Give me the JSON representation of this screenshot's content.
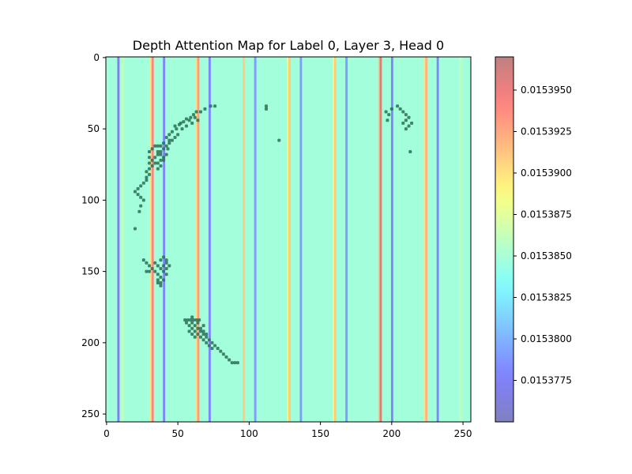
{
  "chart_data": {
    "type": "heatmap",
    "title": "Depth Attention Map for Label 0, Layer 3, Head 0",
    "xlabel": "",
    "ylabel": "",
    "xlim": [
      0,
      255
    ],
    "ylim": [
      255,
      0
    ],
    "x_ticks": [
      0,
      50,
      100,
      150,
      200,
      250
    ],
    "y_ticks": [
      0,
      50,
      100,
      150,
      200,
      250
    ],
    "grid": false,
    "colormap": "jet",
    "colormap_alpha": 0.5,
    "colorbar": {
      "min": 0.015375,
      "max": 0.015397,
      "ticks": [
        0.0153775,
        0.01538,
        0.0153825,
        0.015385,
        0.0153875,
        0.01539,
        0.0153925,
        0.015395
      ],
      "tick_labels": [
        "0.0153775",
        "0.0153800",
        "0.0153825",
        "0.0153850",
        "0.0153875",
        "0.0153900",
        "0.0153925",
        "0.0153950"
      ]
    },
    "background_value": 0.0153848,
    "column_bands": [
      {
        "x": 8,
        "value": 0.015377
      },
      {
        "x": 11,
        "value": 0.015386
      },
      {
        "x": 31,
        "value": 0.01539
      },
      {
        "x": 32,
        "value": 0.015394
      },
      {
        "x": 40,
        "value": 0.015378
      },
      {
        "x": 63,
        "value": 0.01539
      },
      {
        "x": 64,
        "value": 0.015393
      },
      {
        "x": 72,
        "value": 0.015378
      },
      {
        "x": 96,
        "value": 0.015391
      },
      {
        "x": 104,
        "value": 0.015379
      },
      {
        "x": 127,
        "value": 0.015389
      },
      {
        "x": 128,
        "value": 0.015391
      },
      {
        "x": 136,
        "value": 0.015379
      },
      {
        "x": 159,
        "value": 0.015389
      },
      {
        "x": 160,
        "value": 0.015391
      },
      {
        "x": 168,
        "value": 0.015379
      },
      {
        "x": 191,
        "value": 0.015391
      },
      {
        "x": 192,
        "value": 0.015396
      },
      {
        "x": 200,
        "value": 0.015378
      },
      {
        "x": 223,
        "value": 0.01539
      },
      {
        "x": 224,
        "value": 0.015392
      },
      {
        "x": 232,
        "value": 0.015378
      },
      {
        "x": 248,
        "value": 0.015386
      }
    ],
    "overlay_points": [
      [
        73,
        34
      ],
      [
        76,
        34
      ],
      [
        69,
        36
      ],
      [
        66,
        38
      ],
      [
        63,
        38
      ],
      [
        61,
        40
      ],
      [
        59,
        42
      ],
      [
        56,
        43
      ],
      [
        54,
        45
      ],
      [
        51,
        47
      ],
      [
        49,
        50
      ],
      [
        56,
        48
      ],
      [
        53,
        50
      ],
      [
        60,
        46
      ],
      [
        64,
        44
      ],
      [
        62,
        42
      ],
      [
        58,
        44
      ],
      [
        52,
        46
      ],
      [
        48,
        48
      ],
      [
        46,
        52
      ],
      [
        44,
        54
      ],
      [
        42,
        56
      ],
      [
        50,
        54
      ],
      [
        48,
        56
      ],
      [
        46,
        58
      ],
      [
        44,
        60
      ],
      [
        42,
        62
      ],
      [
        40,
        64
      ],
      [
        38,
        66
      ],
      [
        36,
        68
      ],
      [
        34,
        70
      ],
      [
        32,
        72
      ],
      [
        40,
        60
      ],
      [
        38,
        62
      ],
      [
        36,
        62
      ],
      [
        34,
        62
      ],
      [
        32,
        64
      ],
      [
        30,
        66
      ],
      [
        30,
        70
      ],
      [
        30,
        74
      ],
      [
        30,
        78
      ],
      [
        28,
        80
      ],
      [
        28,
        84
      ],
      [
        36,
        66
      ],
      [
        38,
        68
      ],
      [
        40,
        70
      ],
      [
        38,
        72
      ],
      [
        36,
        74
      ],
      [
        34,
        74
      ],
      [
        32,
        76
      ],
      [
        30,
        82
      ],
      [
        28,
        86
      ],
      [
        26,
        88
      ],
      [
        24,
        90
      ],
      [
        22,
        92
      ],
      [
        20,
        94
      ],
      [
        22,
        96
      ],
      [
        24,
        98
      ],
      [
        26,
        100
      ],
      [
        24,
        104
      ],
      [
        23,
        108
      ],
      [
        20,
        120
      ],
      [
        44,
        58
      ],
      [
        43,
        64
      ],
      [
        42,
        68
      ],
      [
        40,
        72
      ],
      [
        38,
        76
      ],
      [
        36,
        78
      ],
      [
        112,
        34
      ],
      [
        112,
        36
      ],
      [
        121,
        58
      ],
      [
        196,
        38
      ],
      [
        198,
        40
      ],
      [
        200,
        36
      ],
      [
        204,
        34
      ],
      [
        206,
        36
      ],
      [
        208,
        38
      ],
      [
        210,
        40
      ],
      [
        212,
        42
      ],
      [
        210,
        44
      ],
      [
        208,
        46
      ],
      [
        212,
        48
      ],
      [
        210,
        50
      ],
      [
        214,
        46
      ],
      [
        197,
        44
      ],
      [
        213,
        66
      ],
      [
        26,
        142
      ],
      [
        28,
        144
      ],
      [
        30,
        146
      ],
      [
        32,
        148
      ],
      [
        34,
        150
      ],
      [
        36,
        152
      ],
      [
        38,
        154
      ],
      [
        40,
        156
      ],
      [
        36,
        158
      ],
      [
        38,
        160
      ],
      [
        38,
        142
      ],
      [
        40,
        140
      ],
      [
        42,
        142
      ],
      [
        42,
        144
      ],
      [
        44,
        146
      ],
      [
        42,
        148
      ],
      [
        40,
        150
      ],
      [
        38,
        148
      ],
      [
        36,
        146
      ],
      [
        34,
        144
      ],
      [
        30,
        150
      ],
      [
        28,
        150
      ],
      [
        40,
        146
      ],
      [
        42,
        152
      ],
      [
        38,
        158
      ],
      [
        36,
        156
      ],
      [
        55,
        184
      ],
      [
        57,
        184
      ],
      [
        59,
        184
      ],
      [
        61,
        184
      ],
      [
        63,
        184
      ],
      [
        65,
        184
      ],
      [
        60,
        186
      ],
      [
        62,
        188
      ],
      [
        64,
        190
      ],
      [
        66,
        192
      ],
      [
        68,
        194
      ],
      [
        70,
        196
      ],
      [
        72,
        198
      ],
      [
        74,
        200
      ],
      [
        76,
        202
      ],
      [
        78,
        204
      ],
      [
        80,
        206
      ],
      [
        82,
        208
      ],
      [
        84,
        210
      ],
      [
        86,
        212
      ],
      [
        88,
        214
      ],
      [
        90,
        214
      ],
      [
        92,
        214
      ],
      [
        58,
        188
      ],
      [
        60,
        190
      ],
      [
        62,
        192
      ],
      [
        64,
        194
      ],
      [
        66,
        196
      ],
      [
        68,
        198
      ],
      [
        70,
        200
      ],
      [
        72,
        202
      ],
      [
        74,
        204
      ],
      [
        58,
        192
      ],
      [
        60,
        194
      ],
      [
        62,
        196
      ],
      [
        66,
        190
      ],
      [
        68,
        192
      ],
      [
        70,
        194
      ],
      [
        56,
        186
      ],
      [
        60,
        182
      ],
      [
        64,
        186
      ],
      [
        68,
        188
      ]
    ],
    "overlay_color": "#2d6f57"
  }
}
